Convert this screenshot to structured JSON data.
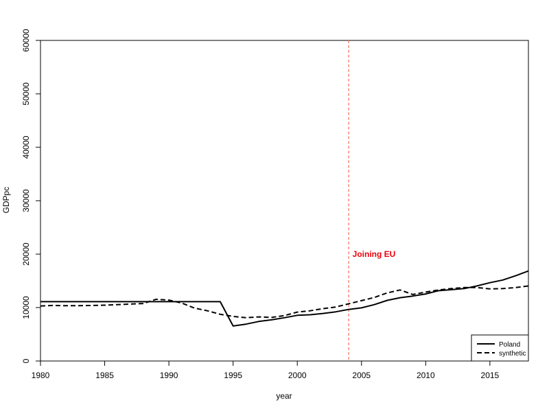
{
  "chart_data": {
    "type": "line",
    "xlabel": "year",
    "ylabel": "GDPpc",
    "xlim": [
      1980,
      2018
    ],
    "ylim": [
      0,
      60000
    ],
    "xticks": [
      1980,
      1985,
      1990,
      1995,
      2000,
      2005,
      2010,
      2015
    ],
    "xtick_labels": [
      "1980",
      "1985",
      "1990",
      "1995",
      "2000",
      "2005",
      "2010",
      "2015"
    ],
    "yticks": [
      0,
      10000,
      20000,
      30000,
      40000,
      50000,
      60000
    ],
    "ytick_labels": [
      "0",
      "10000",
      "20000",
      "30000",
      "40000",
      "50000",
      "60000"
    ],
    "grid": false,
    "legend_position": "bottom-right",
    "series": [
      {
        "name": "Poland",
        "style": "solid",
        "color": "#000000",
        "x": [
          1980,
          1981,
          1982,
          1983,
          1984,
          1985,
          1986,
          1987,
          1988,
          1989,
          1990,
          1991,
          1992,
          1993,
          1994,
          1995,
          1996,
          1997,
          1998,
          1999,
          2000,
          2001,
          2002,
          2003,
          2004,
          2005,
          2006,
          2007,
          2008,
          2009,
          2010,
          2011,
          2012,
          2013,
          2014,
          2015,
          2016,
          2017,
          2018
        ],
        "y": [
          11100,
          11100,
          11100,
          11100,
          11100,
          11100,
          11100,
          11100,
          11100,
          11100,
          11100,
          11100,
          11100,
          11100,
          11100,
          6550,
          6900,
          7400,
          7700,
          8100,
          8550,
          8650,
          8900,
          9200,
          9650,
          9950,
          10550,
          11350,
          11850,
          12150,
          12550,
          13150,
          13350,
          13550,
          14050,
          14650,
          15150,
          15950,
          16850
        ]
      },
      {
        "name": "synthetic",
        "style": "dashed",
        "color": "#000000",
        "x": [
          1980,
          1981,
          1982,
          1983,
          1984,
          1985,
          1986,
          1987,
          1988,
          1989,
          1990,
          1991,
          1992,
          1993,
          1994,
          1995,
          1996,
          1997,
          1998,
          1999,
          2000,
          2001,
          2002,
          2003,
          2004,
          2005,
          2006,
          2007,
          2008,
          2009,
          2010,
          2011,
          2012,
          2013,
          2014,
          2015,
          2016,
          2017,
          2018
        ],
        "y": [
          10300,
          10400,
          10350,
          10350,
          10400,
          10450,
          10550,
          10650,
          10750,
          11550,
          11400,
          10850,
          9900,
          9400,
          8750,
          8350,
          8100,
          8250,
          8150,
          8500,
          9150,
          9400,
          9800,
          10100,
          10700,
          11300,
          11900,
          12750,
          13300,
          12450,
          12900,
          13300,
          13550,
          13750,
          13750,
          13500,
          13550,
          13750,
          14050
        ]
      }
    ],
    "annotations": [
      {
        "type": "vline",
        "x": 2004,
        "color": "#ff6a5a",
        "style": "dashed"
      },
      {
        "type": "text",
        "x": 2004.3,
        "y": 20000,
        "text": "Joining EU",
        "color": "#e8000b"
      }
    ]
  }
}
